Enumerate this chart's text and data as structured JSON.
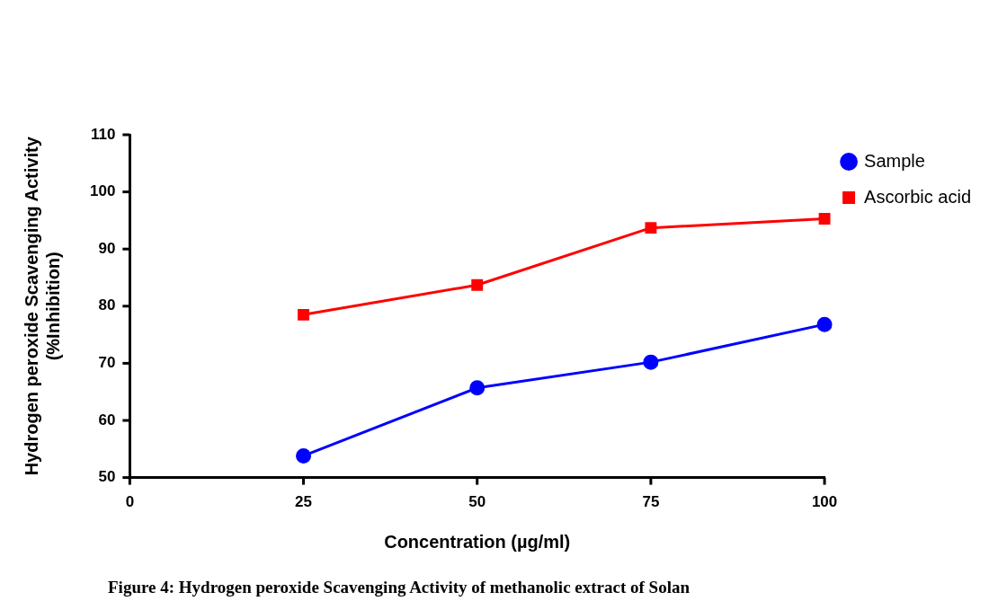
{
  "chart_data": {
    "type": "line",
    "xlabel": "Concentration (µg/ml)",
    "ylabel": "Hydrogen peroxide Scavenging Activity\n(%Inhibition)",
    "x": [
      25,
      50,
      75,
      100
    ],
    "series": [
      {
        "name": "Sample",
        "color": "#0000ff",
        "marker": "circle",
        "values": [
          53.8,
          65.7,
          70.2,
          76.8
        ]
      },
      {
        "name": "Ascorbic acid",
        "color": "#ff0000",
        "marker": "square",
        "values": [
          78.5,
          83.7,
          93.7,
          95.3
        ]
      }
    ],
    "xlim": [
      0,
      100
    ],
    "xticks": [
      0,
      25,
      50,
      75,
      100
    ],
    "ylim": [
      50,
      110
    ],
    "yticks": [
      50,
      60,
      70,
      80,
      90,
      100,
      110
    ],
    "grid": false,
    "legend": "top right",
    "line_style": "solid",
    "annotations": [
      "Figure 4: Hydrogen peroxide Scavenging Activity of methanolic extract of Solan"
    ]
  }
}
